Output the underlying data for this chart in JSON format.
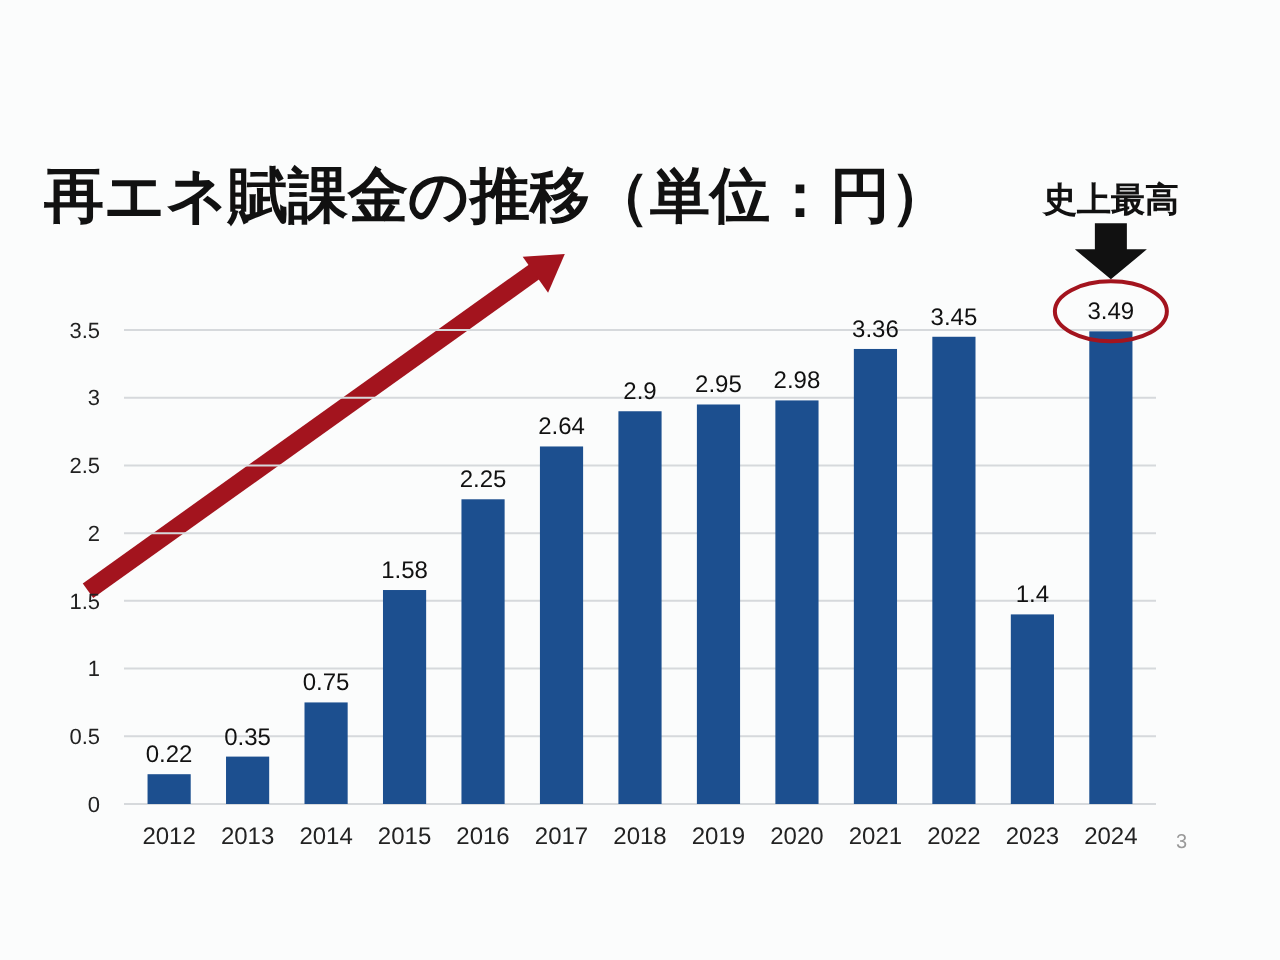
{
  "chart_data": {
    "type": "bar",
    "title": "再エネ賦課金の推移（単位：円）",
    "categories": [
      "2012",
      "2013",
      "2014",
      "2015",
      "2016",
      "2017",
      "2018",
      "2019",
      "2020",
      "2021",
      "2022",
      "2023",
      "2024"
    ],
    "values": [
      0.22,
      0.35,
      0.75,
      1.58,
      2.25,
      2.64,
      2.9,
      2.95,
      2.98,
      3.36,
      3.45,
      1.4,
      3.49
    ],
    "color": "#1c4f8f",
    "ylim": [
      0,
      3.5
    ],
    "yticks": [
      0,
      0.5,
      1,
      1.5,
      2,
      2.5,
      3,
      3.5
    ],
    "grid": "y",
    "data_labels": true,
    "annotations": [
      "史上最高",
      "3"
    ]
  }
}
